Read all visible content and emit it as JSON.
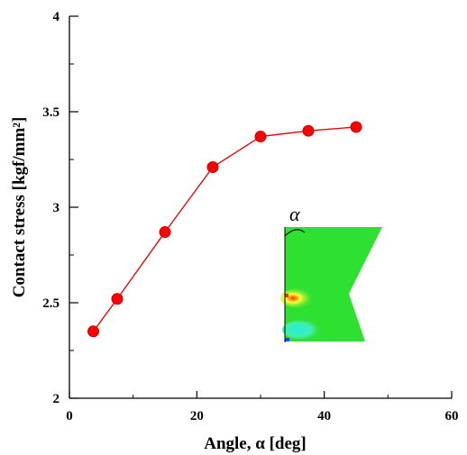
{
  "chart_data": {
    "type": "line",
    "xlabel": "Angle, α [deg]",
    "ylabel": "Contact stress [kgf/mm²]",
    "xlim": [
      0,
      60
    ],
    "ylim": [
      2,
      4
    ],
    "x_ticks": [
      "0",
      "20",
      "40",
      "60"
    ],
    "y_ticks": [
      "2",
      "2.5",
      "3",
      "3.5",
      "4"
    ],
    "grid": false,
    "series": [
      {
        "x": [
          3.75,
          7.5,
          15,
          22.5,
          30,
          37.5,
          45
        ],
        "y": [
          2.35,
          2.52,
          2.87,
          3.21,
          3.37,
          3.4,
          3.42
        ],
        "color": "#e00000"
      }
    ],
    "inset": {
      "symbol": "α",
      "description_colors": [
        "#22dd22",
        "#ffff33",
        "#ff3300",
        "#33dddd",
        "#2244ff"
      ]
    }
  }
}
